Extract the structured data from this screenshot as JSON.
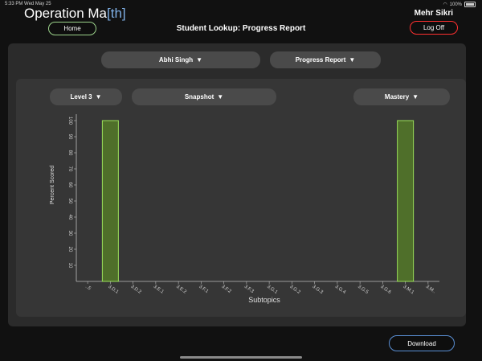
{
  "status_bar": {
    "time": "5:33 PM  Wed May 25",
    "battery": "100%"
  },
  "header": {
    "app_title_main": "Operation Ma",
    "app_title_accent": "[th]",
    "user_name": "Mehr Sikri",
    "page_title": "Student Lookup: Progress Report",
    "home_label": "Home",
    "logoff_label": "Log Off"
  },
  "filters": {
    "student": "Abhi Singh",
    "report": "Progress Report",
    "level": "Level 3",
    "view": "Snapshot",
    "metric": "Mastery"
  },
  "icons": {
    "caret": "▼"
  },
  "footer": {
    "download_label": "Download"
  },
  "colors": {
    "bar_fill": "#4f6f2a",
    "bar_stroke": "#9be05a",
    "accent": "#7fb0e6",
    "logoff": "#ff3030",
    "home": "#9bd28a"
  },
  "chart_data": {
    "type": "bar",
    "categories": [
      "..5",
      "3.D.1",
      "3.D.2",
      "3.E.1",
      "3.E.2",
      "3.F.1",
      "3.F.2",
      "3.F.3",
      "3.G.1",
      "3.G.2",
      "3.G.3",
      "3.G.4",
      "3.G.5",
      "3.G.6",
      "3.M.1",
      "3.M.."
    ],
    "values": [
      0,
      100,
      0,
      0,
      0,
      0,
      0,
      0,
      0,
      0,
      0,
      0,
      0,
      0,
      100,
      0
    ],
    "title": "",
    "xlabel": "Subtopics",
    "ylabel": "Percent Scored",
    "ylim": [
      0,
      100
    ],
    "yticks": [
      "10",
      "20",
      "30",
      "40",
      "50",
      "60",
      "70",
      "80",
      "90",
      "100"
    ],
    "grid": false,
    "legend": "none"
  }
}
